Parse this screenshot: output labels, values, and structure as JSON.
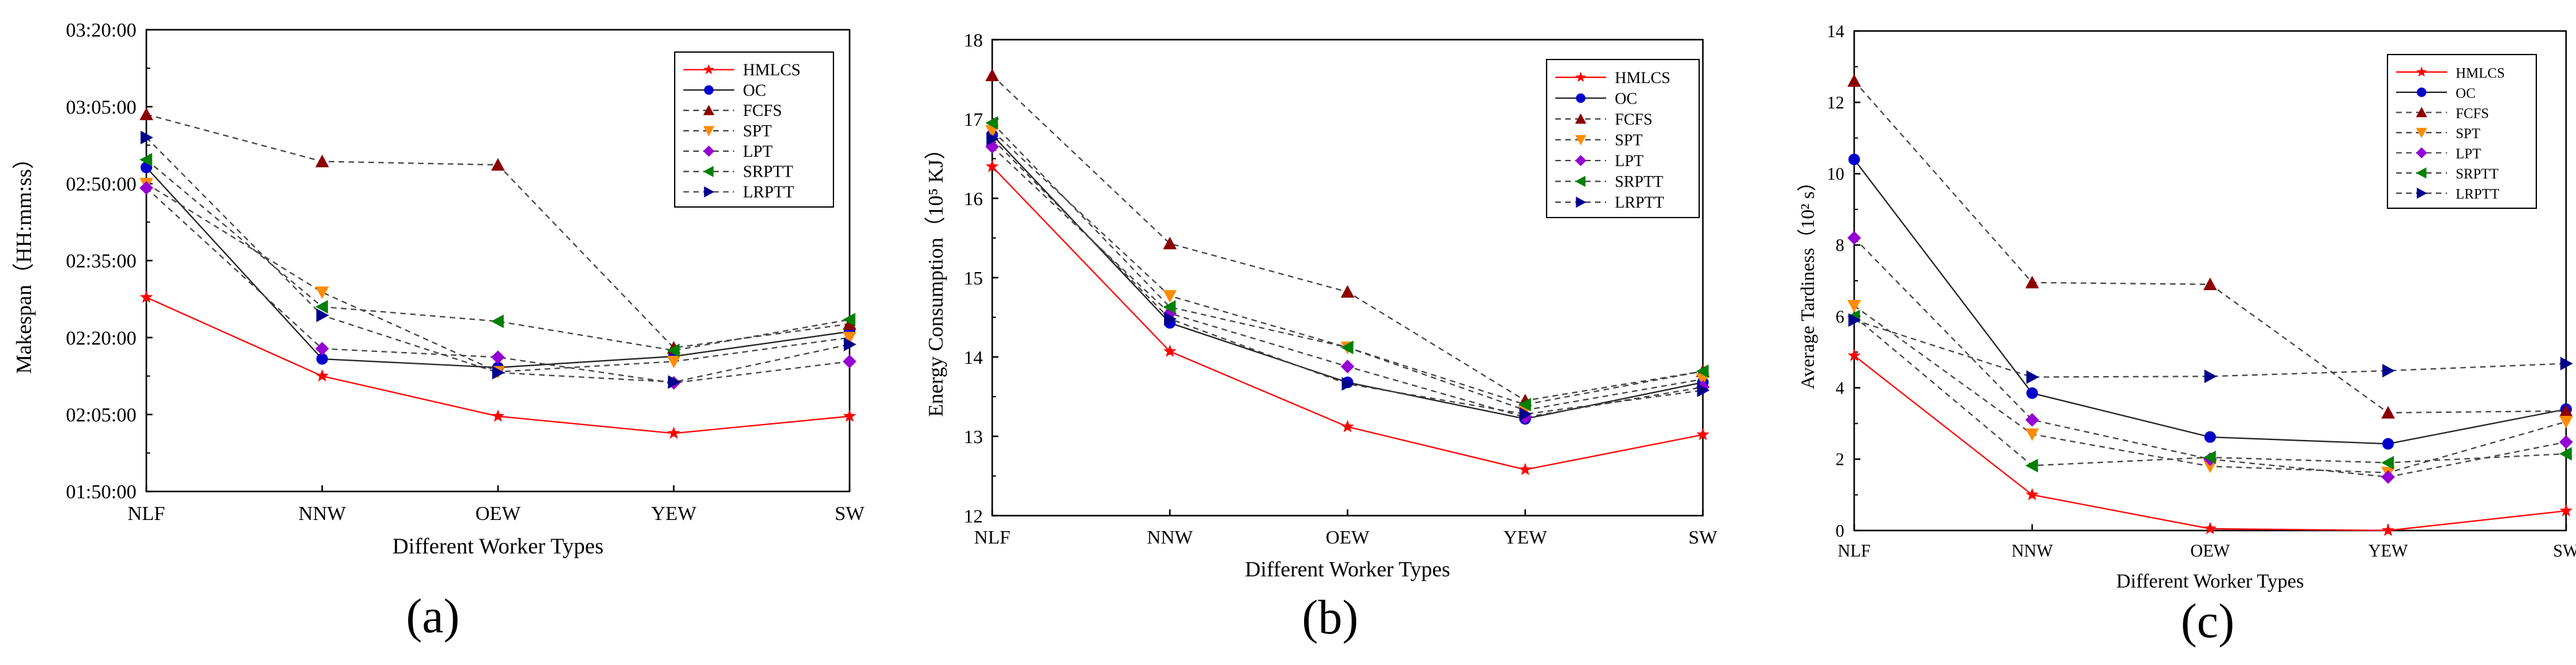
{
  "figure": {
    "x_categories": [
      "NLF",
      "NNW",
      "OEW",
      "YEW",
      "SW"
    ],
    "series_order": [
      "HMLCS",
      "OC",
      "FCFS",
      "SPT",
      "LPT",
      "SRPTT",
      "LRPTT"
    ],
    "series_styles": {
      "HMLCS": {
        "color": "#ff0000",
        "marker": "star",
        "dash": false
      },
      "OC": {
        "color": "#0000cc",
        "marker": "circle",
        "dash": false
      },
      "FCFS": {
        "color": "#8b0000",
        "marker": "triangle-up",
        "dash": true
      },
      "SPT": {
        "color": "#ff8c00",
        "marker": "triangle-down",
        "dash": true
      },
      "LPT": {
        "color": "#9400d3",
        "marker": "diamond",
        "dash": true
      },
      "SRPTT": {
        "color": "#008000",
        "marker": "triangle-left",
        "dash": true
      },
      "LRPTT": {
        "color": "#00008b",
        "marker": "triangle-right",
        "dash": true
      }
    },
    "line_color_hmlcs": "#ff0000",
    "line_color_oc": "#222222",
    "line_color_others": "#444444"
  },
  "chart_data": [
    {
      "type": "line",
      "panel_label": "(a)",
      "xlabel": "Different Worker Types",
      "ylabel": "Makespan（HH:mm:ss）",
      "categories": [
        "NLF",
        "NNW",
        "OEW",
        "YEW",
        "SW"
      ],
      "ylim_seconds": [
        6600,
        12000
      ],
      "y_ticks_seconds": [
        6600,
        7500,
        8400,
        9300,
        10200,
        11100,
        12000
      ],
      "y_tick_labels": [
        "01:50:00",
        "02:05:00",
        "02:20:00",
        "02:35:00",
        "02:50:00",
        "03:05:00",
        "03:20:00"
      ],
      "series": [
        {
          "name": "HMLCS",
          "values_seconds": [
            8870,
            7950,
            7480,
            7280,
            7480
          ]
        },
        {
          "name": "OC",
          "values_seconds": [
            10390,
            8150,
            8050,
            8180,
            8470
          ]
        },
        {
          "name": "FCFS",
          "values_seconds": [
            11010,
            10460,
            10420,
            8280,
            8560
          ]
        },
        {
          "name": "SPT",
          "values_seconds": [
            10200,
            8930,
            8000,
            8120,
            8400
          ]
        },
        {
          "name": "LPT",
          "values_seconds": [
            10150,
            8270,
            8170,
            7870,
            8120
          ]
        },
        {
          "name": "SRPTT",
          "values_seconds": [
            10480,
            8760,
            8590,
            8250,
            8610
          ]
        },
        {
          "name": "LRPTT",
          "values_seconds": [
            10740,
            8660,
            7990,
            7880,
            8320
          ]
        }
      ]
    },
    {
      "type": "line",
      "panel_label": "(b)",
      "xlabel": "Different Worker Types",
      "ylabel": "Energy Consumption（10⁵ KJ）",
      "categories": [
        "NLF",
        "NNW",
        "OEW",
        "YEW",
        "SW"
      ],
      "ylim": [
        12,
        18
      ],
      "y_ticks": [
        12,
        13,
        14,
        15,
        16,
        17,
        18
      ],
      "series": [
        {
          "name": "HMLCS",
          "values": [
            16.4,
            14.07,
            13.12,
            12.58,
            13.02
          ]
        },
        {
          "name": "OC",
          "values": [
            16.8,
            14.43,
            13.68,
            13.22,
            13.68
          ]
        },
        {
          "name": "FCFS",
          "values": [
            17.55,
            15.43,
            14.82,
            13.45,
            13.82
          ]
        },
        {
          "name": "SPT",
          "values": [
            16.85,
            14.77,
            14.12,
            13.33,
            13.72
          ]
        },
        {
          "name": "LPT",
          "values": [
            16.65,
            14.55,
            13.88,
            13.24,
            13.62
          ]
        },
        {
          "name": "SRPTT",
          "values": [
            16.95,
            14.63,
            14.12,
            13.4,
            13.82
          ]
        },
        {
          "name": "LRPTT",
          "values": [
            16.75,
            14.48,
            13.66,
            13.28,
            13.58
          ]
        }
      ]
    },
    {
      "type": "line",
      "panel_label": "(c)",
      "xlabel": "Different Worker Types",
      "ylabel": "Average Tardiness（10² s）",
      "categories": [
        "NLF",
        "NNW",
        "OEW",
        "YEW",
        "SW"
      ],
      "ylim": [
        0,
        14
      ],
      "y_ticks": [
        0,
        2,
        4,
        6,
        8,
        10,
        12,
        14
      ],
      "series": [
        {
          "name": "HMLCS",
          "values": [
            4.9,
            1.0,
            0.05,
            0.0,
            0.55
          ]
        },
        {
          "name": "OC",
          "values": [
            10.4,
            3.85,
            2.62,
            2.43,
            3.4
          ]
        },
        {
          "name": "FCFS",
          "values": [
            12.6,
            6.95,
            6.9,
            3.3,
            3.35
          ]
        },
        {
          "name": "SPT",
          "values": [
            6.3,
            2.7,
            1.8,
            1.62,
            3.05
          ]
        },
        {
          "name": "LPT",
          "values": [
            8.2,
            3.1,
            2.0,
            1.5,
            2.48
          ]
        },
        {
          "name": "SRPTT",
          "values": [
            6.0,
            1.82,
            2.05,
            1.9,
            2.15
          ]
        },
        {
          "name": "LRPTT",
          "values": [
            5.9,
            4.3,
            4.32,
            4.48,
            4.68
          ]
        }
      ]
    }
  ]
}
